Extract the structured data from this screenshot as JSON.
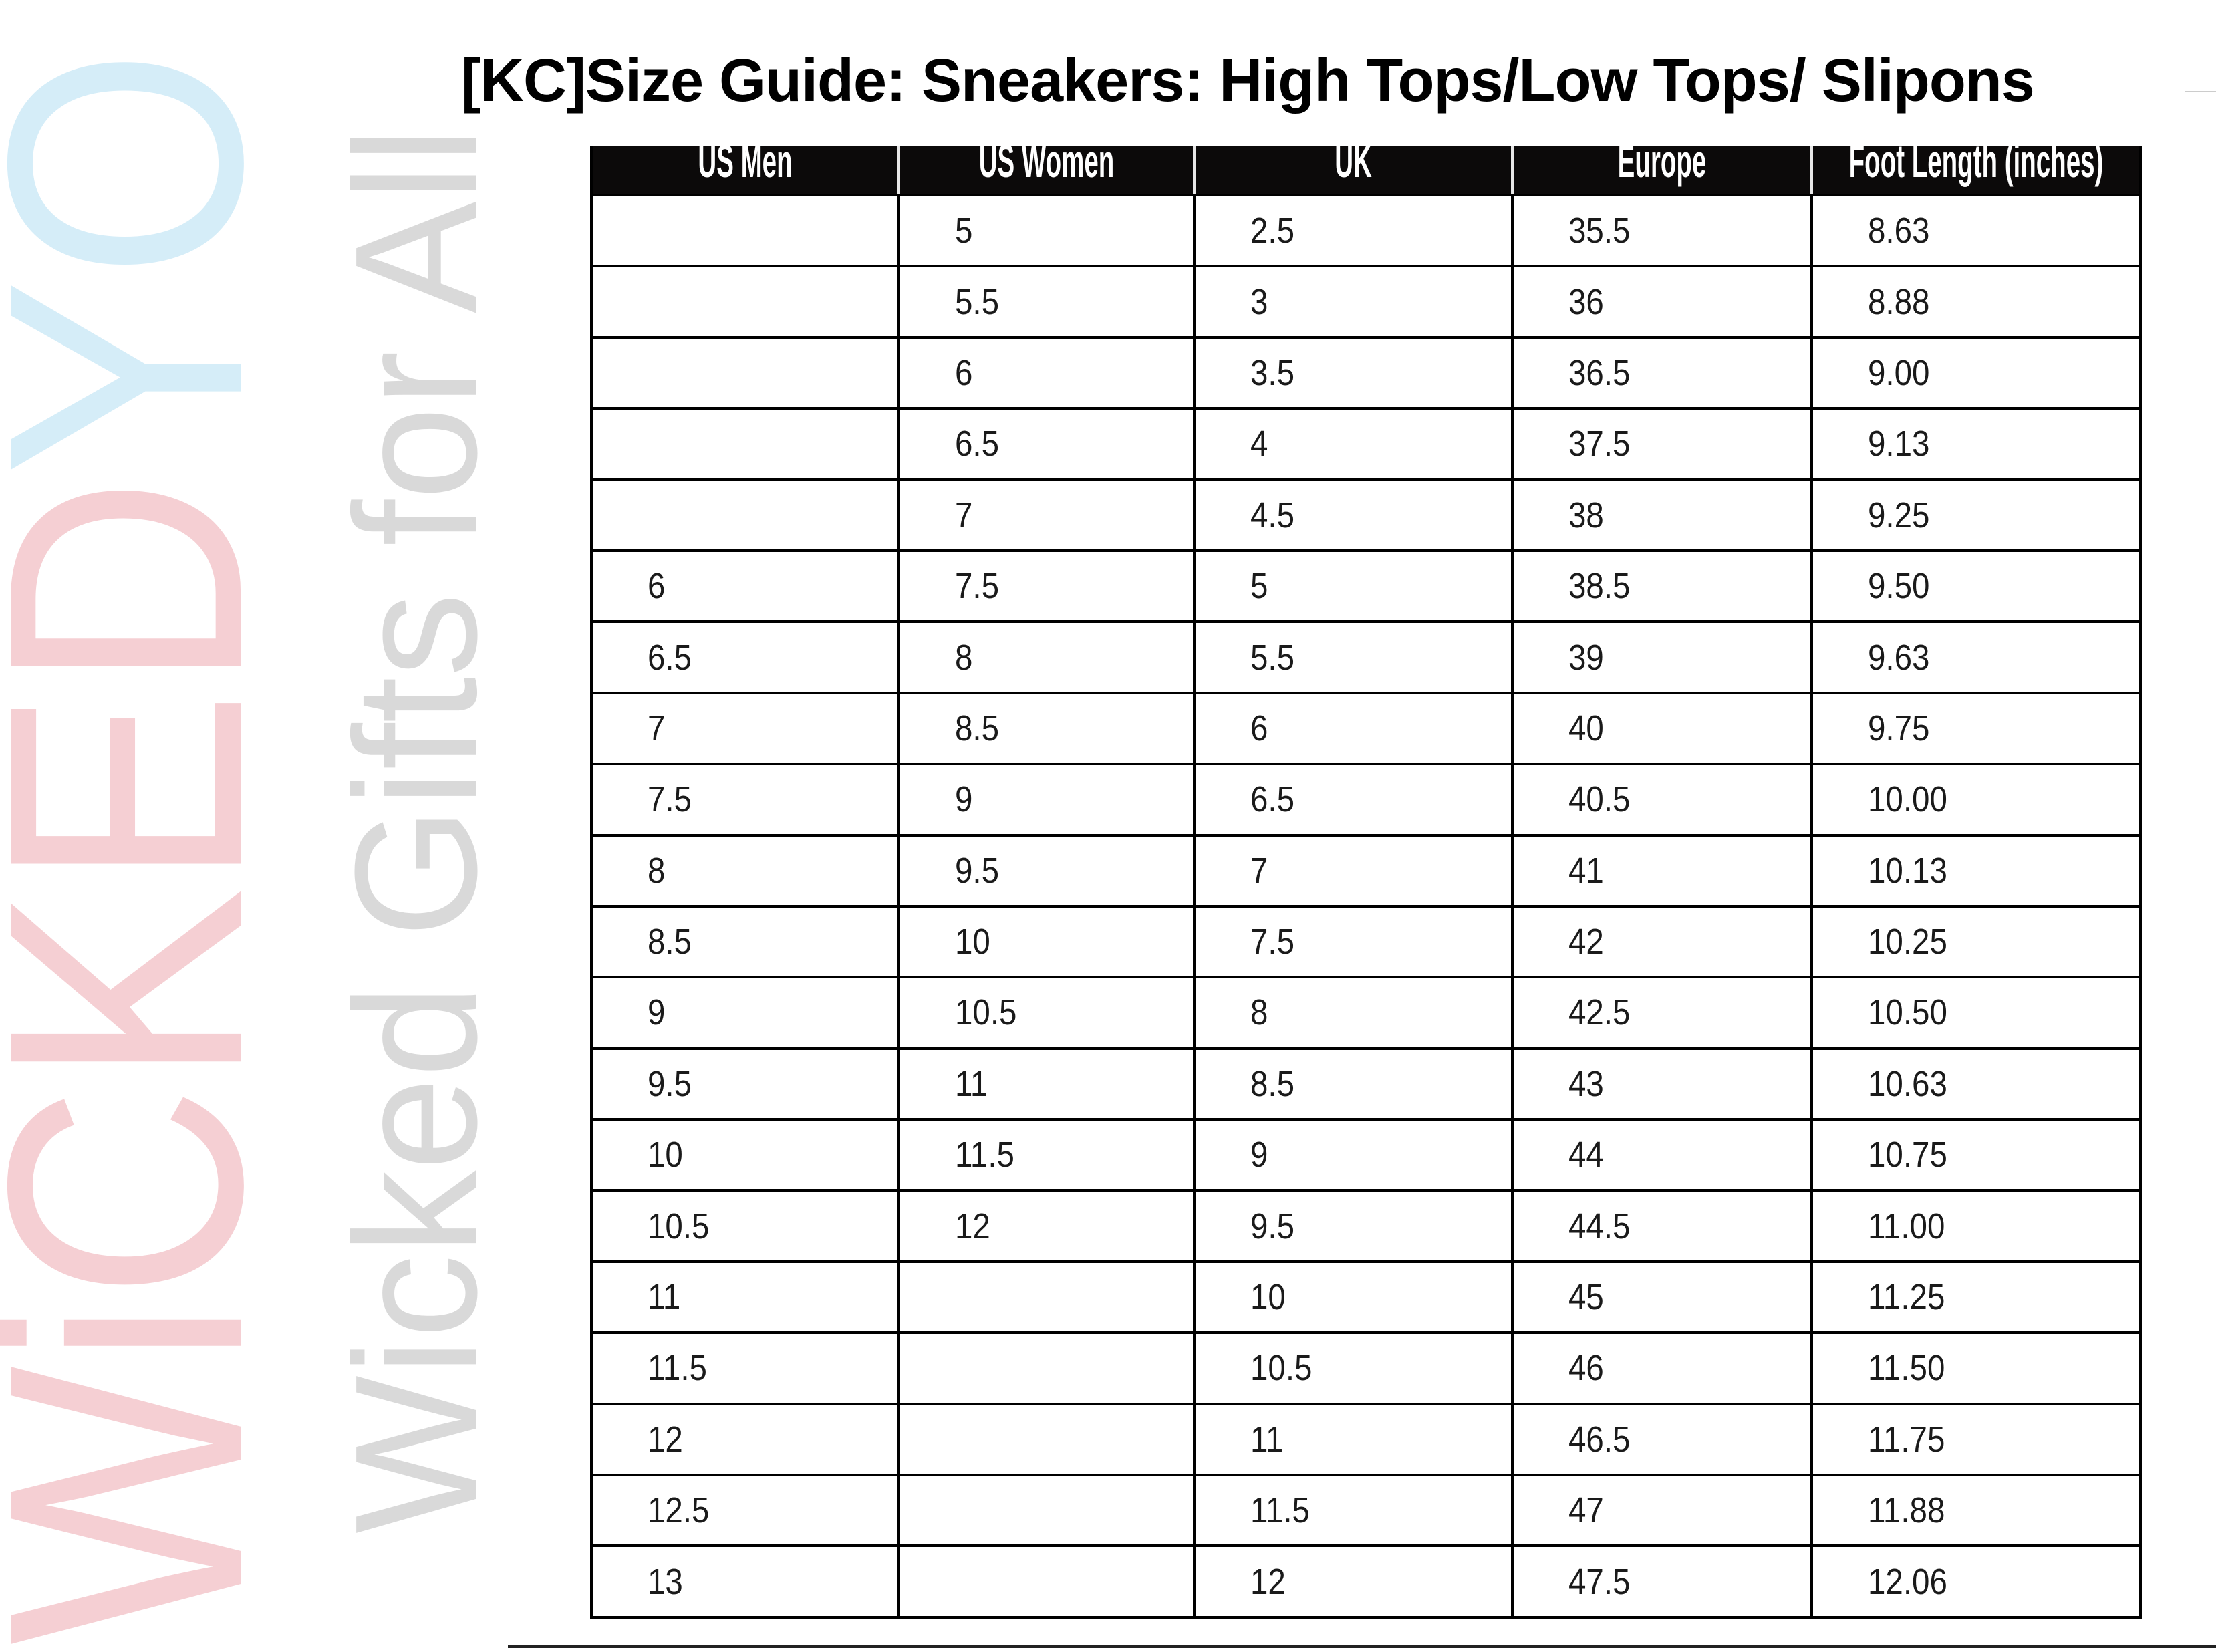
{
  "title": "[KC]Size Guide: Sneakers: High Tops/Low Tops/ Slipons",
  "watermark": {
    "logo_main": "WiCKED",
    "logo_accent": "YO",
    "tagline": "Wicked Gifts for All",
    "colors": {
      "main": "#f5cfd3",
      "accent": "#d5edf8",
      "tagline": "#d9d9d9"
    }
  },
  "table": {
    "headers": [
      "US Men",
      "US Women",
      "UK",
      "Europe",
      "Foot  Length (inches)"
    ],
    "rows": [
      [
        "",
        "5",
        "2.5",
        "35.5",
        "8.63"
      ],
      [
        "",
        "5.5",
        "3",
        "36",
        "8.88"
      ],
      [
        "",
        "6",
        "3.5",
        "36.5",
        "9.00"
      ],
      [
        "",
        "6.5",
        "4",
        "37.5",
        "9.13"
      ],
      [
        "",
        "7",
        "4.5",
        "38",
        "9.25"
      ],
      [
        "6",
        "7.5",
        "5",
        "38.5",
        "9.50"
      ],
      [
        "6.5",
        "8",
        "5.5",
        "39",
        "9.63"
      ],
      [
        "7",
        "8.5",
        "6",
        "40",
        "9.75"
      ],
      [
        "7.5",
        "9",
        "6.5",
        "40.5",
        "10.00"
      ],
      [
        "8",
        "9.5",
        "7",
        "41",
        "10.13"
      ],
      [
        "8.5",
        "10",
        "7.5",
        "42",
        "10.25"
      ],
      [
        "9",
        "10.5",
        "8",
        "42.5",
        "10.50"
      ],
      [
        "9.5",
        "11",
        "8.5",
        "43",
        "10.63"
      ],
      [
        "10",
        "11.5",
        "9",
        "44",
        "10.75"
      ],
      [
        "10.5",
        "12",
        "9.5",
        "44.5",
        "11.00"
      ],
      [
        "11",
        "",
        "10",
        "45",
        "11.25"
      ],
      [
        "11.5",
        "",
        "10.5",
        "46",
        "11.50"
      ],
      [
        "12",
        "",
        "11",
        "46.5",
        "11.75"
      ],
      [
        "12.5",
        "",
        "11.5",
        "47",
        "11.88"
      ],
      [
        "13",
        "",
        "12",
        "47.5",
        "12.06"
      ]
    ]
  }
}
